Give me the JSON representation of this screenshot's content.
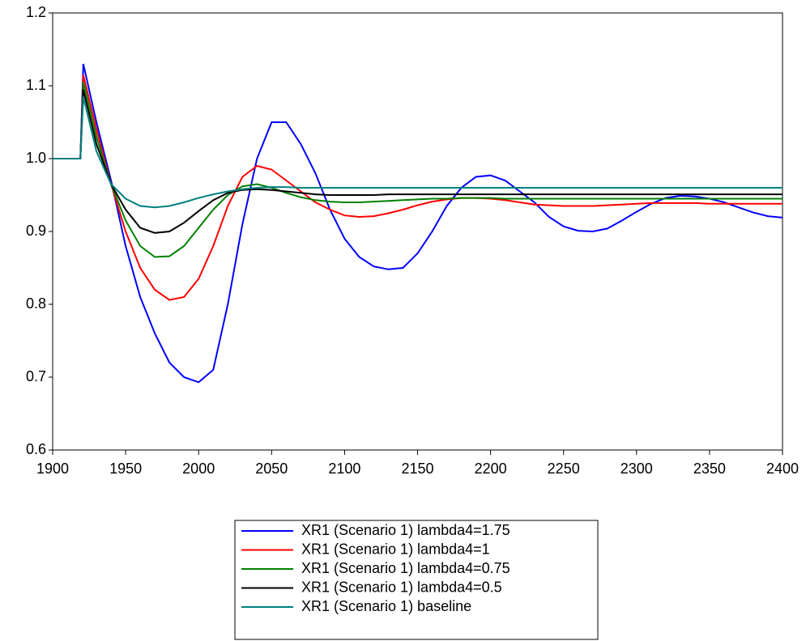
{
  "chart_data": {
    "type": "line",
    "x": [
      1900,
      1919,
      1921,
      1930,
      1940,
      1950,
      1960,
      1970,
      1980,
      1990,
      2000,
      2010,
      2020,
      2030,
      2040,
      2050,
      2060,
      2070,
      2080,
      2090,
      2100,
      2110,
      2120,
      2130,
      2140,
      2150,
      2160,
      2170,
      2180,
      2190,
      2200,
      2210,
      2220,
      2230,
      2240,
      2250,
      2260,
      2270,
      2280,
      2290,
      2300,
      2310,
      2320,
      2330,
      2340,
      2350,
      2360,
      2370,
      2380,
      2390,
      2400
    ],
    "series": [
      {
        "name": "XR1 (Scenario 1) lambda4=1.75",
        "color": "#0000ff",
        "values": [
          1.0,
          1.0,
          1.13,
          1.05,
          0.97,
          0.88,
          0.81,
          0.76,
          0.72,
          0.7,
          0.693,
          0.71,
          0.8,
          0.91,
          1.0,
          1.05,
          1.05,
          1.02,
          0.98,
          0.93,
          0.89,
          0.865,
          0.852,
          0.848,
          0.85,
          0.87,
          0.9,
          0.935,
          0.96,
          0.975,
          0.977,
          0.97,
          0.955,
          0.94,
          0.92,
          0.907,
          0.901,
          0.9,
          0.904,
          0.915,
          0.927,
          0.938,
          0.946,
          0.949,
          0.948,
          0.945,
          0.94,
          0.933,
          0.926,
          0.921,
          0.919
        ]
      },
      {
        "name": "XR1 (Scenario 1) lambda4=1",
        "color": "#ff0000",
        "values": [
          1.0,
          1.0,
          1.115,
          1.04,
          0.965,
          0.9,
          0.85,
          0.82,
          0.806,
          0.81,
          0.835,
          0.88,
          0.935,
          0.975,
          0.99,
          0.985,
          0.97,
          0.955,
          0.94,
          0.93,
          0.922,
          0.92,
          0.921,
          0.925,
          0.93,
          0.936,
          0.941,
          0.944,
          0.946,
          0.946,
          0.945,
          0.943,
          0.94,
          0.937,
          0.936,
          0.935,
          0.935,
          0.935,
          0.936,
          0.937,
          0.938,
          0.939,
          0.939,
          0.939,
          0.939,
          0.938,
          0.938,
          0.938,
          0.938,
          0.938,
          0.938
        ]
      },
      {
        "name": "XR1 (Scenario 1) lambda4=0.75",
        "color": "#008000",
        "values": [
          1.0,
          1.0,
          1.105,
          1.03,
          0.965,
          0.915,
          0.88,
          0.865,
          0.866,
          0.88,
          0.905,
          0.93,
          0.95,
          0.962,
          0.965,
          0.96,
          0.953,
          0.947,
          0.943,
          0.941,
          0.94,
          0.94,
          0.941,
          0.942,
          0.943,
          0.944,
          0.945,
          0.945,
          0.946,
          0.946,
          0.946,
          0.945,
          0.945,
          0.945,
          0.945,
          0.945,
          0.945,
          0.945,
          0.945,
          0.945,
          0.945,
          0.945,
          0.945,
          0.945,
          0.945,
          0.945,
          0.945,
          0.945,
          0.945,
          0.945,
          0.945
        ]
      },
      {
        "name": "XR1 (Scenario 1) lambda4=0.5",
        "color": "#000000",
        "values": [
          1.0,
          1.0,
          1.095,
          1.02,
          0.965,
          0.93,
          0.905,
          0.898,
          0.9,
          0.912,
          0.928,
          0.943,
          0.953,
          0.957,
          0.958,
          0.957,
          0.955,
          0.953,
          0.951,
          0.95,
          0.95,
          0.95,
          0.95,
          0.951,
          0.951,
          0.951,
          0.951,
          0.951,
          0.951,
          0.951,
          0.951,
          0.951,
          0.951,
          0.951,
          0.951,
          0.951,
          0.951,
          0.951,
          0.951,
          0.951,
          0.951,
          0.951,
          0.951,
          0.951,
          0.951,
          0.951,
          0.951,
          0.951,
          0.951,
          0.951,
          0.951
        ]
      },
      {
        "name": "XR1 (Scenario 1) baseline",
        "color": "#008080",
        "values": [
          1.0,
          1.0,
          1.085,
          1.01,
          0.965,
          0.945,
          0.935,
          0.933,
          0.935,
          0.94,
          0.946,
          0.951,
          0.955,
          0.958,
          0.96,
          0.961,
          0.961,
          0.96,
          0.96,
          0.96,
          0.96,
          0.96,
          0.96,
          0.96,
          0.96,
          0.96,
          0.96,
          0.96,
          0.96,
          0.96,
          0.96,
          0.96,
          0.96,
          0.96,
          0.96,
          0.96,
          0.96,
          0.96,
          0.96,
          0.96,
          0.96,
          0.96,
          0.96,
          0.96,
          0.96,
          0.96,
          0.96,
          0.96,
          0.96,
          0.96,
          0.96
        ]
      }
    ],
    "xlim": [
      1900,
      2400
    ],
    "xticks": [
      1900,
      1950,
      2000,
      2050,
      2100,
      2150,
      2200,
      2250,
      2300,
      2350,
      2400
    ],
    "ylim": [
      0.6,
      1.2
    ],
    "yticks": [
      0.6,
      0.7,
      0.8,
      0.9,
      {
        "value": 1,
        "label": "1.0"
      },
      1.1,
      1.2
    ]
  }
}
